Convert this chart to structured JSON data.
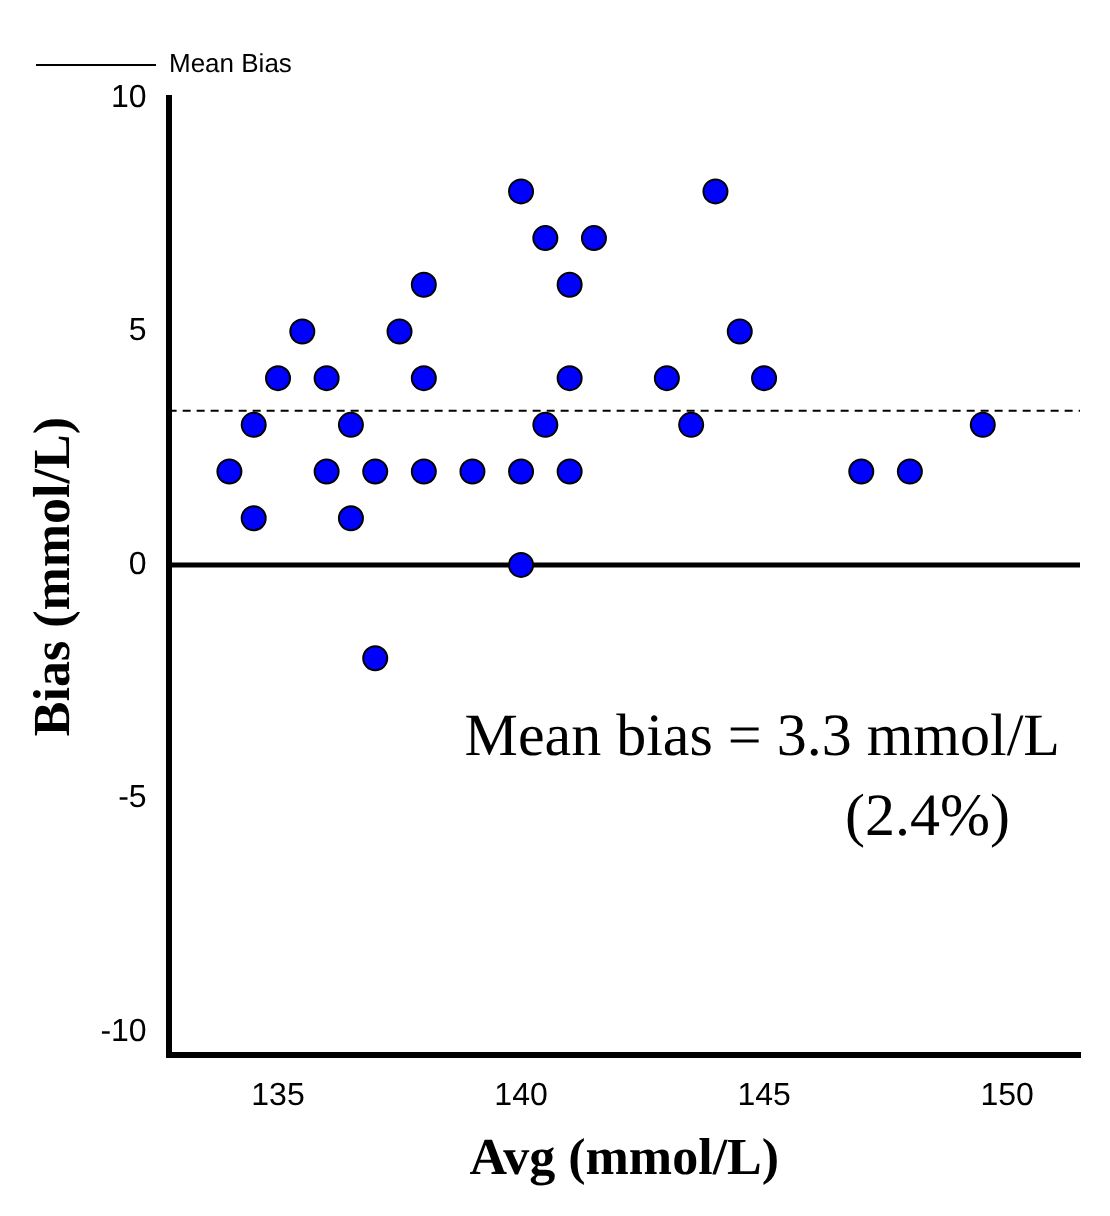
{
  "chart_data": {
    "type": "scatter",
    "ylabel": "Bias (mmol/L)",
    "xlabel": "Avg (mmol/L)",
    "x": [
      134,
      134.5,
      134.5,
      135,
      135.5,
      136,
      136,
      136.5,
      136.5,
      137,
      137,
      137.5,
      138,
      138,
      138,
      139,
      140,
      140,
      140,
      140.5,
      140.5,
      141,
      141,
      141,
      141.5,
      143,
      143.5,
      144,
      144.5,
      145,
      147,
      148,
      149.5
    ],
    "series": [
      {
        "color": "#0000ff",
        "values": [
          2,
          3,
          1,
          4,
          5,
          4,
          2,
          3,
          1,
          2,
          -2,
          5,
          6,
          4,
          2,
          2,
          8,
          2,
          0,
          7,
          3,
          6,
          4,
          2,
          7,
          4,
          3,
          8,
          5,
          4,
          2,
          2,
          3
        ]
      }
    ],
    "xlim": [
      132.75,
      151.5
    ],
    "xticks": [
      135,
      140,
      145,
      150
    ],
    "ylim": [
      -10.5,
      10
    ],
    "yticks": [
      -10,
      -5,
      0,
      5,
      10
    ],
    "marker": "circle",
    "grid": false,
    "legend": "top left",
    "ref_lines": [
      {
        "axis": "y",
        "value": 0,
        "color": "#000000",
        "line_style": "solid"
      },
      {
        "axis": "y",
        "value": 3.3,
        "label": "Mean Bias",
        "color": "#000000",
        "line_style": "dashed"
      }
    ],
    "annotations": [
      "Mean bias = 3.3 mmol/L\n(2.4%)"
    ]
  }
}
